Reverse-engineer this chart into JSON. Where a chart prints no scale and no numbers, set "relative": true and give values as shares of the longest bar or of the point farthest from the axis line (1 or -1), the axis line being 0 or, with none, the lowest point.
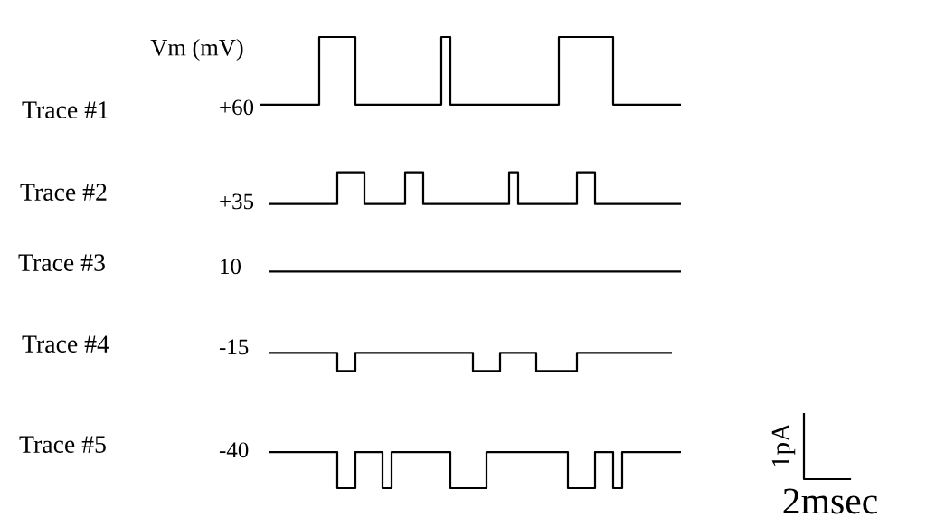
{
  "chart_data": {
    "type": "step",
    "relative": true,
    "ylabel": "Vm (mV)",
    "annotations": [
      "Trace #1",
      "+60",
      "Trace #2",
      "+35",
      "Trace #3",
      "10",
      "Trace #4",
      "-15",
      "Trace #5",
      "-40",
      "1pA",
      "2msec"
    ],
    "categories": [
      null,
      null,
      null,
      null,
      null,
      null,
      null,
      null,
      null,
      null,
      null,
      null,
      null,
      null,
      null,
      null,
      null,
      null,
      null,
      null,
      null,
      null,
      null,
      null,
      null,
      null,
      null,
      null,
      null,
      null,
      null,
      null,
      null,
      null,
      null,
      null,
      null,
      null,
      null,
      null,
      null,
      null,
      null,
      null,
      null,
      null,
      null,
      null,
      null,
      null,
      null,
      null,
      null,
      null,
      null,
      null,
      null,
      null,
      null,
      null,
      null,
      null,
      null,
      null,
      null,
      null,
      null,
      null,
      null,
      null,
      null,
      null,
      null,
      null,
      null,
      null,
      null,
      null,
      null,
      null,
      null,
      null,
      null,
      null,
      null,
      null,
      null,
      null,
      null,
      null,
      null,
      null,
      null,
      null
    ],
    "series": [
      {
        "color": "#000000",
        "values": [
          0.85,
          0.85,
          0.85,
          0.85,
          0.85,
          0.85,
          0.85,
          0.85,
          0.85,
          0.85,
          0.85,
          0.85,
          0.85,
          1,
          1,
          1,
          1,
          1,
          1,
          1,
          1,
          0.85,
          0.85,
          0.85,
          0.85,
          0.85,
          0.85,
          0.85,
          0.85,
          0.85,
          0.85,
          0.85,
          0.85,
          0.85,
          0.85,
          0.85,
          0.85,
          0.85,
          0.85,
          0.85,
          1,
          1,
          0.85,
          0.85,
          0.85,
          0.85,
          0.85,
          0.85,
          0.85,
          0.85,
          0.85,
          0.85,
          0.85,
          0.85,
          0.85,
          0.85,
          0.85,
          0.85,
          0.85,
          0.85,
          0.85,
          0.85,
          0.85,
          0.85,
          0.85,
          0.85,
          1,
          1,
          1,
          1,
          1,
          1,
          1,
          1,
          1,
          1,
          1,
          1,
          0.85,
          0.85,
          0.85,
          0.85,
          0.85,
          0.85,
          0.85,
          0.85,
          0.85,
          0.85,
          0.85,
          0.85,
          0.85,
          0.85,
          0.85,
          0.85
        ]
      },
      {
        "color": "#000000",
        "values": [
          null,
          null,
          0.63,
          0.63,
          0.63,
          0.63,
          0.63,
          0.63,
          0.63,
          0.63,
          0.63,
          0.63,
          0.63,
          0.63,
          0.63,
          0.63,
          0.63,
          0.7,
          0.7,
          0.7,
          0.7,
          0.7,
          0.7,
          0.63,
          0.63,
          0.63,
          0.63,
          0.63,
          0.63,
          0.63,
          0.63,
          0.63,
          0.7,
          0.7,
          0.7,
          0.7,
          0.63,
          0.63,
          0.63,
          0.63,
          0.63,
          0.63,
          0.63,
          0.63,
          0.63,
          0.63,
          0.63,
          0.63,
          0.63,
          0.63,
          0.63,
          0.63,
          0.63,
          0.63,
          0.63,
          0.7,
          0.7,
          0.63,
          0.63,
          0.63,
          0.63,
          0.63,
          0.63,
          0.63,
          0.63,
          0.63,
          0.63,
          0.63,
          0.63,
          0.63,
          0.7,
          0.7,
          0.7,
          0.7,
          0.63,
          0.63,
          0.63,
          0.63,
          0.63,
          0.63,
          0.63,
          0.63,
          0.63,
          0.63,
          0.63,
          0.63,
          0.63,
          0.63,
          0.63,
          0.63,
          0.63,
          0.63,
          0.63,
          0.63
        ]
      },
      {
        "color": "#000000",
        "values": [
          null,
          null,
          0.48,
          0.48,
          0.48,
          0.48,
          0.48,
          0.48,
          0.48,
          0.48,
          0.48,
          0.48,
          0.48,
          0.48,
          0.48,
          0.48,
          0.48,
          0.48,
          0.48,
          0.48,
          0.48,
          0.48,
          0.48,
          0.48,
          0.48,
          0.48,
          0.48,
          0.48,
          0.48,
          0.48,
          0.48,
          0.48,
          0.48,
          0.48,
          0.48,
          0.48,
          0.48,
          0.48,
          0.48,
          0.48,
          0.48,
          0.48,
          0.48,
          0.48,
          0.48,
          0.48,
          0.48,
          0.48,
          0.48,
          0.48,
          0.48,
          0.48,
          0.48,
          0.48,
          0.48,
          0.48,
          0.48,
          0.48,
          0.48,
          0.48,
          0.48,
          0.48,
          0.48,
          0.48,
          0.48,
          0.48,
          0.48,
          0.48,
          0.48,
          0.48,
          0.48,
          0.48,
          0.48,
          0.48,
          0.48,
          0.48,
          0.48,
          0.48,
          0.48,
          0.48,
          0.48,
          0.48,
          0.48,
          0.48,
          0.48,
          0.48,
          0.48,
          0.48,
          0.48,
          0.48,
          0.48,
          0.48,
          0.48,
          0.48
        ]
      },
      {
        "color": "#000000",
        "values": [
          null,
          null,
          0.3,
          0.3,
          0.3,
          0.3,
          0.3,
          0.3,
          0.3,
          0.3,
          0.3,
          0.3,
          0.3,
          0.3,
          0.3,
          0.3,
          0.3,
          0.26,
          0.26,
          0.26,
          0.26,
          0.3,
          0.3,
          0.3,
          0.3,
          0.3,
          0.3,
          0.3,
          0.3,
          0.3,
          0.3,
          0.3,
          0.3,
          0.3,
          0.3,
          0.3,
          0.3,
          0.3,
          0.3,
          0.3,
          0.3,
          0.3,
          0.3,
          0.3,
          0.3,
          0.3,
          0.3,
          0.26,
          0.26,
          0.26,
          0.26,
          0.26,
          0.26,
          0.3,
          0.3,
          0.3,
          0.3,
          0.3,
          0.3,
          0.3,
          0.3,
          0.26,
          0.26,
          0.26,
          0.26,
          0.26,
          0.26,
          0.26,
          0.26,
          0.26,
          0.3,
          0.3,
          0.3,
          0.3,
          0.3,
          0.3,
          0.3,
          0.3,
          0.3,
          0.3,
          0.3,
          0.3,
          0.3,
          0.3,
          0.3,
          0.3,
          0.3,
          0.3,
          0.3,
          0.3,
          0.3,
          0.3,
          null,
          null
        ]
      },
      {
        "color": "#000000",
        "values": [
          null,
          null,
          0.08,
          0.08,
          0.08,
          0.08,
          0.08,
          0.08,
          0.08,
          0.08,
          0.08,
          0.08,
          0.08,
          0.08,
          0.08,
          0.08,
          0.08,
          0,
          0,
          0,
          0,
          0.08,
          0.08,
          0.08,
          0.08,
          0.08,
          0.08,
          0,
          0,
          0.08,
          0.08,
          0.08,
          0.08,
          0.08,
          0.08,
          0.08,
          0.08,
          0.08,
          0.08,
          0.08,
          0.08,
          0.08,
          0,
          0,
          0,
          0,
          0,
          0,
          0,
          0,
          0.08,
          0.08,
          0.08,
          0.08,
          0.08,
          0.08,
          0.08,
          0.08,
          0.08,
          0.08,
          0.08,
          0.08,
          0.08,
          0.08,
          0.08,
          0.08,
          0.08,
          0.08,
          0,
          0,
          0,
          0,
          0,
          0,
          0.08,
          0.08,
          0.08,
          0.08,
          0,
          0,
          0.08,
          0.08,
          0.08,
          0.08,
          0.08,
          0.08,
          0.08,
          0.08,
          0.08,
          0.08,
          0.08,
          0.08,
          0.08,
          0.08
        ]
      }
    ]
  }
}
